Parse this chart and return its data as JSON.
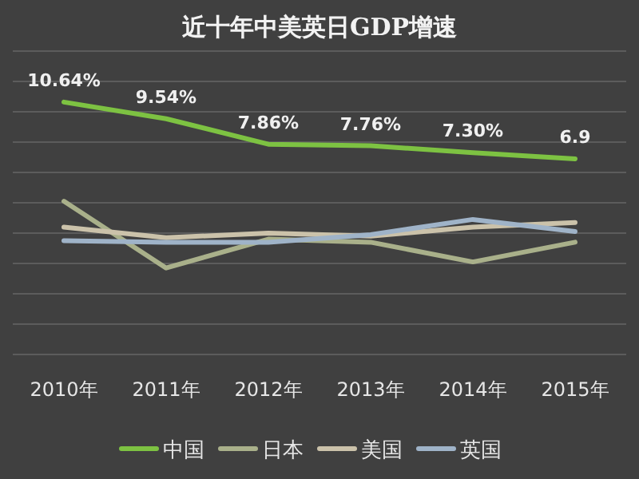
{
  "chart_data": {
    "type": "line",
    "title": "近十年中美英日GDP增速",
    "categories": [
      "2010年",
      "2011年",
      "2012年",
      "2013年",
      "2014年",
      "2015年"
    ],
    "series": [
      {
        "name": "中国",
        "color": "#7dc242",
        "values": [
          10.64,
          9.54,
          7.86,
          7.76,
          7.3,
          6.9
        ],
        "value_labels": [
          "10.64%",
          "9.54%",
          "7.86%",
          "7.76%",
          "7.30%",
          "6.9"
        ]
      },
      {
        "name": "日本",
        "color": "#a9b08a",
        "values": [
          4.1,
          -0.3,
          1.6,
          1.4,
          0.1,
          1.4
        ]
      },
      {
        "name": "美国",
        "color": "#cbc2aa",
        "values": [
          2.4,
          1.7,
          2.0,
          1.8,
          2.4,
          2.7
        ]
      },
      {
        "name": "英国",
        "color": "#9fb3c8",
        "values": [
          1.5,
          1.4,
          1.4,
          1.9,
          2.9,
          2.1
        ]
      }
    ],
    "ylim": [
      -6,
      14
    ],
    "yticks": [
      {
        "value": -6,
        "label": null
      },
      {
        "value": -4,
        "label": null
      },
      {
        "value": -2,
        "label": null
      },
      {
        "value": 0,
        "label": null
      },
      {
        "value": 2,
        "label": null
      },
      {
        "value": 4,
        "label": null
      },
      {
        "value": 6,
        "label": null
      },
      {
        "value": 8,
        "label": null
      },
      {
        "value": 10,
        "label": null
      },
      {
        "value": 12,
        "label": null
      },
      {
        "value": 14,
        "label": null
      }
    ],
    "grid": "y",
    "legend": "bottom"
  }
}
